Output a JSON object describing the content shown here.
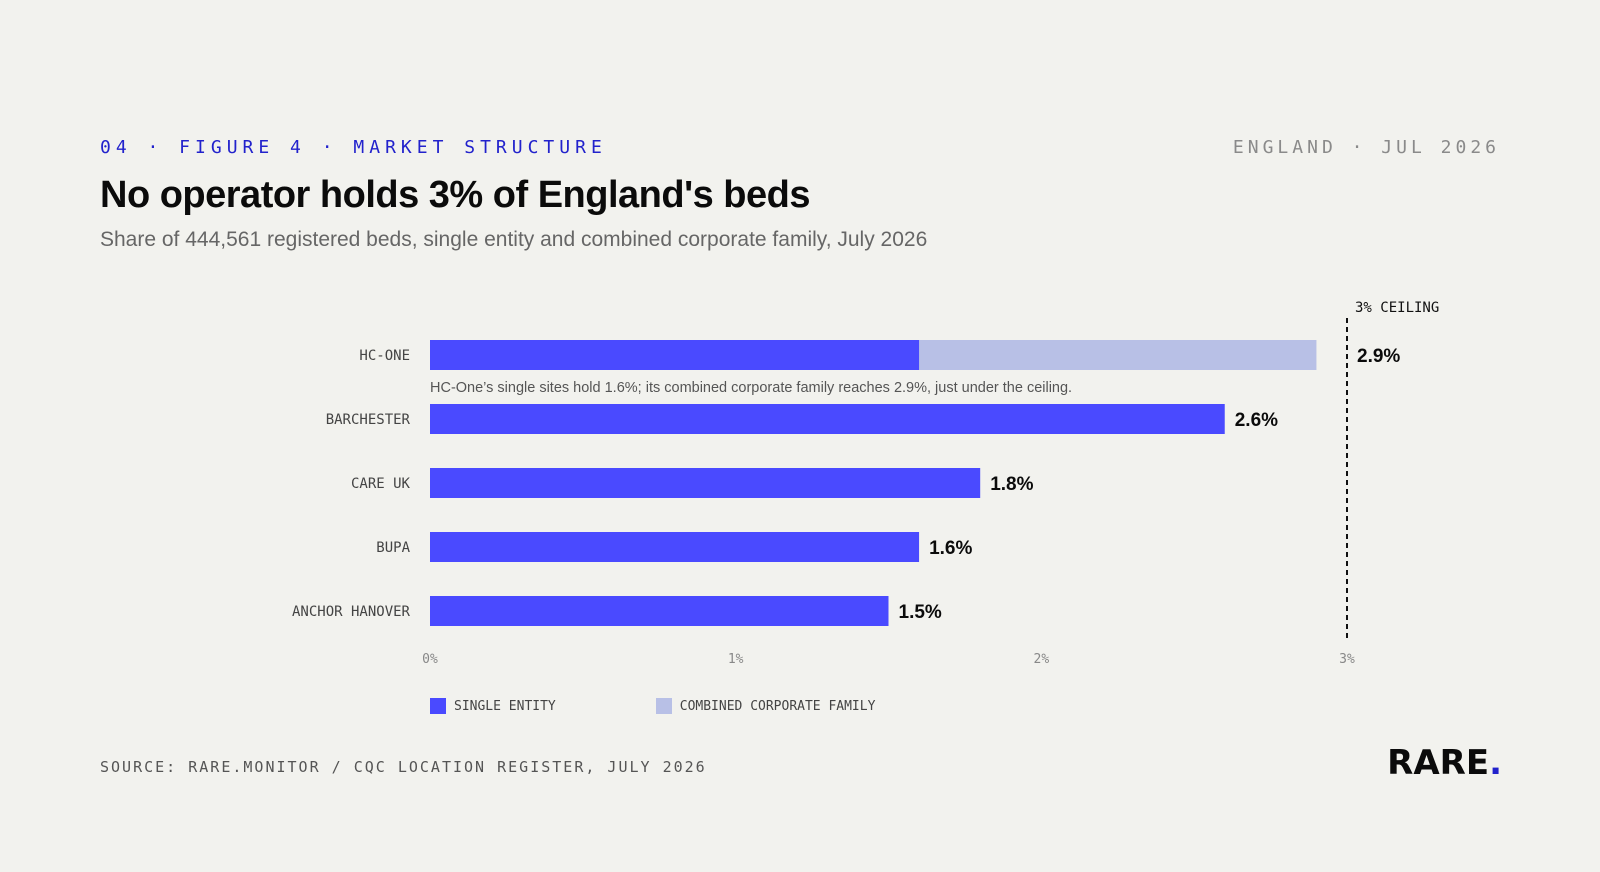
{
  "header": {
    "eyebrow": "04 · FIGURE 4 · MARKET STRUCTURE",
    "dateline": "ENGLAND · JUL 2026",
    "title": "No operator holds 3% of England's beds",
    "subtitle": "Share of 444,561 registered beds, single entity and combined corporate family, July 2026"
  },
  "colors": {
    "single": "#4a4aff",
    "combined": "#b8c0e6",
    "accent": "#2222cc",
    "background": "#f2f2ee"
  },
  "chart_data": {
    "type": "bar",
    "orientation": "horizontal",
    "categories": [
      "HC-ONE",
      "BARCHESTER",
      "CARE UK",
      "BUPA",
      "ANCHOR HANOVER"
    ],
    "series": [
      {
        "name": "SINGLE ENTITY",
        "values": [
          1.6,
          2.6,
          1.8,
          1.6,
          1.5
        ]
      },
      {
        "name": "COMBINED CORPORATE FAMILY",
        "values": [
          2.9,
          null,
          null,
          null,
          null
        ]
      }
    ],
    "data_labels": [
      "2.9%",
      "2.6%",
      "1.8%",
      "1.6%",
      "1.5%"
    ],
    "xlim": [
      0,
      3
    ],
    "xticks": [
      0,
      1,
      2,
      3
    ],
    "xtick_labels": [
      "0%",
      "1%",
      "2%",
      "3%"
    ],
    "reference_line": {
      "value": 3,
      "label": "3% CEILING"
    },
    "annotation": {
      "category": "HC-ONE",
      "text": "HC-One’s single sites hold 1.6%; its combined corporate family reaches 2.9%, just under the ceiling."
    },
    "legend": [
      "SINGLE ENTITY",
      "COMBINED CORPORATE FAMILY"
    ],
    "legend_position": "bottom-left",
    "grid": false
  },
  "footer": {
    "source": "SOURCE: RARE.MONITOR / CQC LOCATION REGISTER, JULY 2026",
    "brand": "RARE",
    "brand_dot": "."
  }
}
